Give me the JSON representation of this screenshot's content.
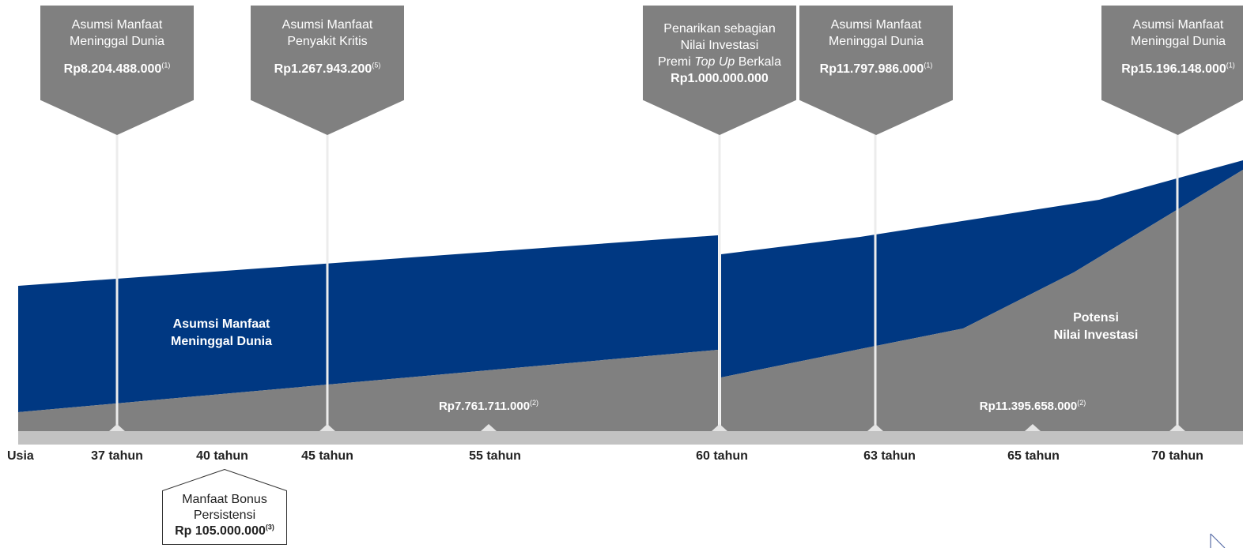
{
  "colors": {
    "navy": "#003882",
    "gray": "#808080",
    "timeline_bar": "#c2c2c2",
    "divider": "#ececec"
  },
  "callouts": [
    {
      "lines": [
        "Asumsi Manfaat",
        "Meninggal Dunia"
      ],
      "value": "Rp8.204.488.000",
      "note": "(1)"
    },
    {
      "lines": [
        "Asumsi Manfaat",
        "Penyakit Kritis"
      ],
      "value": "Rp1.267.943.200",
      "note": "(5)"
    },
    {
      "lines": [
        "Penarikan sebagian",
        "Nilai Investasi"
      ],
      "line3_pre": "Premi ",
      "line3_em": "Top Up",
      "line3_post": " Berkala",
      "value": "Rp1.000.000.000",
      "note": ""
    },
    {
      "lines": [
        "Asumsi Manfaat",
        "Meninggal Dunia"
      ],
      "value": "Rp11.797.986.000",
      "note": "(1)"
    },
    {
      "lines": [
        "Asumsi Manfaat",
        "Meninggal Dunia"
      ],
      "value": "Rp15.196.148.000",
      "note": "(1)"
    }
  ],
  "areas": {
    "death_benefit_label": [
      "Asumsi Manfaat",
      "Meninggal Dunia"
    ],
    "investment_label": [
      "Potensi",
      "Nilai Investasi"
    ],
    "value_55": {
      "text": "Rp7.761.711.000",
      "note": "(2)"
    },
    "value_65": {
      "text": "Rp11.395.658.000",
      "note": "(2)"
    }
  },
  "timeline": {
    "axis_label": "Usia",
    "ages": [
      "37 tahun",
      "40 tahun",
      "45 tahun",
      "55 tahun",
      "60 tahun",
      "63 tahun",
      "65 tahun",
      "70 tahun"
    ]
  },
  "bonus": {
    "lines": [
      "Manfaat Bonus",
      "Persistensi"
    ],
    "value": "Rp 105.000.000",
    "note": "(3)"
  },
  "corner_icon": "arrow-corner-icon"
}
